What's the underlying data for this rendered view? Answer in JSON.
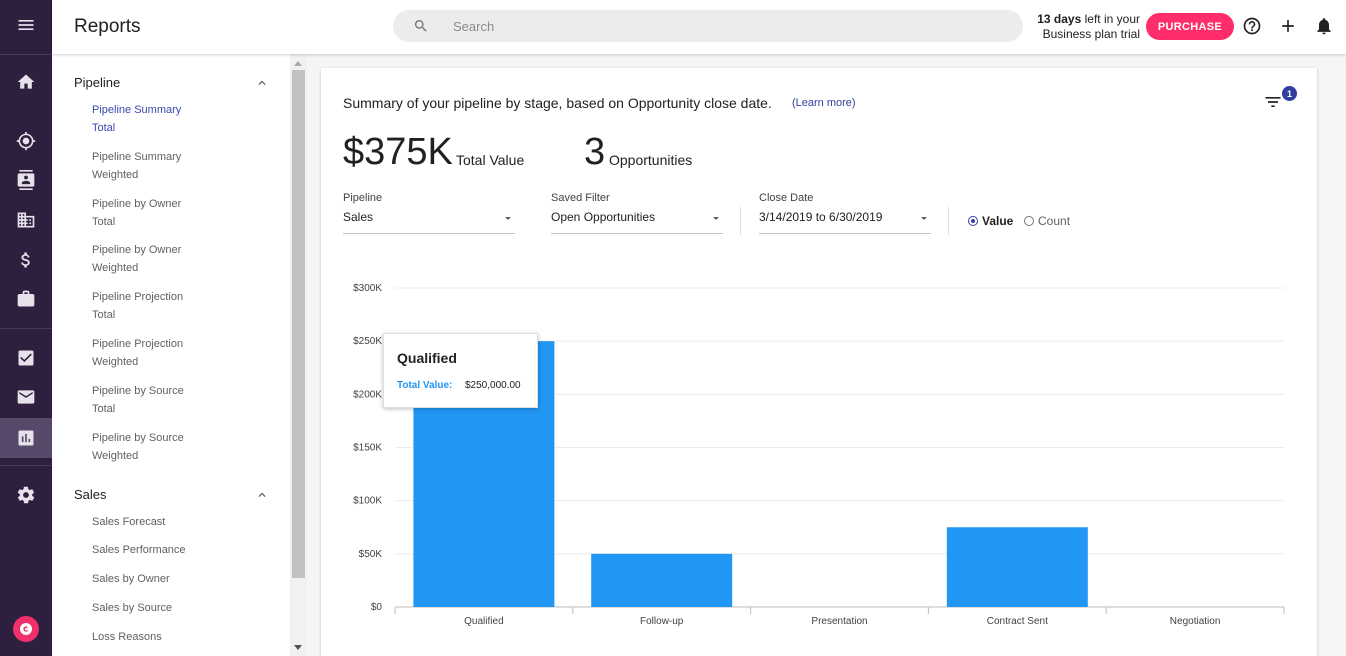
{
  "app": {
    "page_title": "Reports"
  },
  "rail": {
    "items": [
      {
        "name": "menu",
        "icon": "menu-icon"
      },
      {
        "name": "home",
        "icon": "home-icon"
      },
      {
        "name": "leads",
        "icon": "target-icon"
      },
      {
        "name": "contacts",
        "icon": "contacts-icon"
      },
      {
        "name": "companies",
        "icon": "building-icon"
      },
      {
        "name": "opportunities",
        "icon": "dollar-icon"
      },
      {
        "name": "projects",
        "icon": "briefcase-icon"
      },
      {
        "name": "tasks",
        "icon": "checkbox-icon"
      },
      {
        "name": "email",
        "icon": "mail-icon"
      },
      {
        "name": "reports",
        "icon": "bar-chart-icon",
        "active": true
      },
      {
        "name": "settings",
        "icon": "gear-icon"
      }
    ],
    "logo_icon": "copper-logo-icon"
  },
  "header": {
    "search_placeholder": "Search",
    "trial_days": "13 days",
    "trial_rest_line1": " left in your",
    "trial_line2": "Business plan trial",
    "purchase_label": "PURCHASE",
    "icons": [
      "help-icon",
      "plus-icon",
      "bell-icon"
    ]
  },
  "nav": {
    "sections": [
      {
        "title": "Pipeline",
        "items": [
          {
            "line1": "Pipeline Summary",
            "line2": "Total",
            "active": true
          },
          {
            "line1": "Pipeline Summary",
            "line2": "Weighted"
          },
          {
            "line1": "Pipeline by Owner",
            "line2": "Total"
          },
          {
            "line1": "Pipeline by Owner",
            "line2": "Weighted"
          },
          {
            "line1": "Pipeline Projection",
            "line2": "Total"
          },
          {
            "line1": "Pipeline Projection",
            "line2": "Weighted"
          },
          {
            "line1": "Pipeline by Source",
            "line2": "Total"
          },
          {
            "line1": "Pipeline by Source",
            "line2": "Weighted"
          }
        ]
      },
      {
        "title": "Sales",
        "items": [
          {
            "line1": "Sales Forecast"
          },
          {
            "line1": "Sales Performance"
          },
          {
            "line1": "Sales by Owner"
          },
          {
            "line1": "Sales by Source"
          },
          {
            "line1": "Loss Reasons"
          }
        ]
      }
    ]
  },
  "report": {
    "summary": "Summary of your pipeline by stage, based on Opportunity close date.",
    "learn_more": "(Learn more)",
    "filter_count": "1",
    "total_value": "$375K",
    "total_value_label": "Total Value",
    "opportunities": "3",
    "opportunities_label": "Opportunities",
    "filters": {
      "pipeline_label": "Pipeline",
      "pipeline_value": "Sales",
      "saved_filter_label": "Saved Filter",
      "saved_filter_value": "Open Opportunities",
      "close_date_label": "Close Date",
      "close_date_value": "3/14/2019 to 6/30/2019"
    },
    "mode": {
      "value_label": "Value",
      "count_label": "Count",
      "selected": "Value"
    },
    "tooltip": {
      "title": "Qualified",
      "key": "Total Value:",
      "value": "$250,000.00"
    }
  },
  "colors": {
    "rail_bg": "#2d1f3d",
    "accent": "#303f9f",
    "bar": "#2196f3",
    "purchase": "#ff2d6a"
  },
  "chart_data": {
    "type": "bar",
    "categories": [
      "Qualified",
      "Follow-up",
      "Presentation",
      "Contract Sent",
      "Negotiation"
    ],
    "values": [
      250000,
      50000,
      0,
      75000,
      0
    ],
    "yticks": [
      0,
      50000,
      100000,
      150000,
      200000,
      250000,
      300000
    ],
    "ytick_labels": [
      "$0",
      "$50K",
      "$100K",
      "$150K",
      "$200K",
      "$250K",
      "$300K"
    ],
    "ylim": [
      0,
      300000
    ],
    "grid": true,
    "legend": "none"
  }
}
